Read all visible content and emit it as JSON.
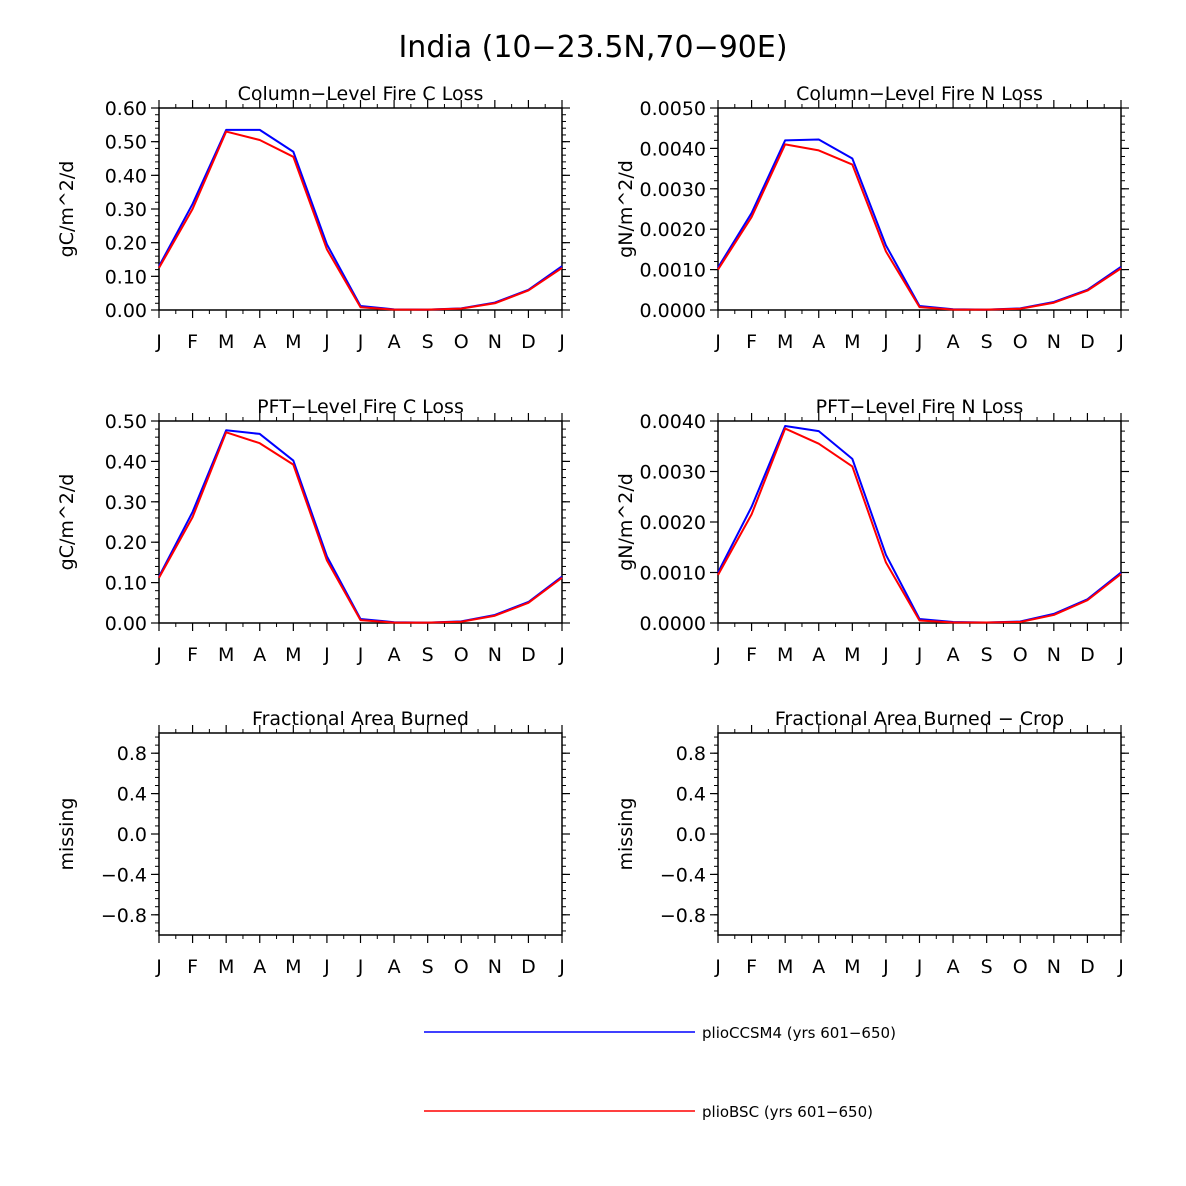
{
  "figure": {
    "title": "India (10−23.5N,70−90E)",
    "colors": {
      "series_0": "#0000ff",
      "series_1": "#ff0000",
      "axes": "#000000"
    }
  },
  "legend": {
    "placement": "bottom-center",
    "entries": [
      {
        "label": "plioCCSM4 (yrs 601−650)",
        "color": "#0000ff"
      },
      {
        "label": "plioBSC (yrs 601−650)",
        "color": "#ff0000"
      }
    ]
  },
  "chart_data": [
    {
      "type": "line",
      "title": "Column−Level Fire C Loss",
      "ylabel": "gC/m^2/d",
      "xlabel": "",
      "categories": [
        "J",
        "F",
        "M",
        "A",
        "M",
        "J",
        "J",
        "A",
        "S",
        "O",
        "N",
        "D",
        "J"
      ],
      "ylim": [
        0,
        0.6
      ],
      "yticks": [
        0,
        0.1,
        0.2,
        0.3,
        0.4,
        0.5,
        0.6
      ],
      "yticklabels": [
        "0.00",
        "0.10",
        "0.20",
        "0.30",
        "0.40",
        "0.50",
        "0.60"
      ],
      "series": [
        {
          "name": "plioCCSM4 (yrs 601−650)",
          "color": "#0000ff",
          "values": [
            0.13,
            0.315,
            0.535,
            0.535,
            0.47,
            0.195,
            0.012,
            0.002,
            0.001,
            0.005,
            0.022,
            0.06,
            0.13
          ]
        },
        {
          "name": "plioBSC (yrs 601−650)",
          "color": "#ff0000",
          "values": [
            0.125,
            0.3,
            0.53,
            0.505,
            0.455,
            0.18,
            0.008,
            0.001,
            0.001,
            0.004,
            0.02,
            0.058,
            0.125
          ]
        }
      ]
    },
    {
      "type": "line",
      "title": "Column−Level Fire N Loss",
      "ylabel": "gN/m^2/d",
      "xlabel": "",
      "categories": [
        "J",
        "F",
        "M",
        "A",
        "M",
        "J",
        "J",
        "A",
        "S",
        "O",
        "N",
        "D",
        "J"
      ],
      "ylim": [
        0,
        0.005
      ],
      "yticks": [
        0,
        0.001,
        0.002,
        0.003,
        0.004,
        0.005
      ],
      "yticklabels": [
        "0.0000",
        "0.0010",
        "0.0020",
        "0.0030",
        "0.0040",
        "0.0050"
      ],
      "series": [
        {
          "name": "plioCCSM4 (yrs 601−650)",
          "color": "#0000ff",
          "values": [
            0.00105,
            0.0024,
            0.0042,
            0.00422,
            0.00375,
            0.0016,
            0.0001,
            2e-05,
            1e-05,
            4e-05,
            0.0002,
            0.0005,
            0.00107
          ]
        },
        {
          "name": "plioBSC (yrs 601−650)",
          "color": "#ff0000",
          "values": [
            0.001,
            0.0023,
            0.0041,
            0.00395,
            0.0036,
            0.00145,
            7e-05,
            1e-05,
            1e-05,
            3e-05,
            0.00018,
            0.00048,
            0.00103
          ]
        }
      ]
    },
    {
      "type": "line",
      "title": "PFT−Level Fire C Loss",
      "ylabel": "gC/m^2/d",
      "xlabel": "",
      "categories": [
        "J",
        "F",
        "M",
        "A",
        "M",
        "J",
        "J",
        "A",
        "S",
        "O",
        "N",
        "D",
        "J"
      ],
      "ylim": [
        0,
        0.5
      ],
      "yticks": [
        0,
        0.1,
        0.2,
        0.3,
        0.4,
        0.5
      ],
      "yticklabels": [
        "0.00",
        "0.10",
        "0.20",
        "0.30",
        "0.40",
        "0.50"
      ],
      "series": [
        {
          "name": "plioCCSM4 (yrs 601−650)",
          "color": "#0000ff",
          "values": [
            0.115,
            0.275,
            0.477,
            0.468,
            0.402,
            0.165,
            0.01,
            0.002,
            0.001,
            0.004,
            0.02,
            0.052,
            0.115
          ]
        },
        {
          "name": "plioBSC (yrs 601−650)",
          "color": "#ff0000",
          "values": [
            0.112,
            0.262,
            0.472,
            0.445,
            0.392,
            0.155,
            0.007,
            0.001,
            0.001,
            0.003,
            0.018,
            0.05,
            0.112
          ]
        }
      ]
    },
    {
      "type": "line",
      "title": "PFT−Level Fire N Loss",
      "ylabel": "gN/m^2/d",
      "xlabel": "",
      "categories": [
        "J",
        "F",
        "M",
        "A",
        "M",
        "J",
        "J",
        "A",
        "S",
        "O",
        "N",
        "D",
        "J"
      ],
      "ylim": [
        0,
        0.004
      ],
      "yticks": [
        0,
        0.001,
        0.002,
        0.003,
        0.004
      ],
      "yticklabels": [
        "0.0000",
        "0.0010",
        "0.0020",
        "0.0030",
        "0.0040"
      ],
      "series": [
        {
          "name": "plioCCSM4 (yrs 601−650)",
          "color": "#0000ff",
          "values": [
            0.001,
            0.0023,
            0.0039,
            0.0038,
            0.00325,
            0.00135,
            8e-05,
            2e-05,
            1e-05,
            3e-05,
            0.00018,
            0.00047,
            0.001
          ]
        },
        {
          "name": "plioBSC (yrs 601−650)",
          "color": "#ff0000",
          "values": [
            0.00095,
            0.00215,
            0.00385,
            0.00355,
            0.0031,
            0.0012,
            5e-05,
            1e-05,
            1e-05,
            2e-05,
            0.00016,
            0.00045,
            0.00097
          ]
        }
      ]
    },
    {
      "type": "line",
      "title": "Fractional Area Burned",
      "ylabel": "missing",
      "xlabel": "",
      "categories": [
        "J",
        "F",
        "M",
        "A",
        "M",
        "J",
        "J",
        "A",
        "S",
        "O",
        "N",
        "D",
        "J"
      ],
      "ylim": [
        -1,
        1
      ],
      "yticks": [
        -0.8,
        -0.4,
        0,
        0.4,
        0.8
      ],
      "yticklabels": [
        "−0.8",
        "−0.4",
        "0.0",
        "0.4",
        "0.8"
      ],
      "series": []
    },
    {
      "type": "line",
      "title": "Fractional Area Burned − Crop",
      "ylabel": "missing",
      "xlabel": "",
      "categories": [
        "J",
        "F",
        "M",
        "A",
        "M",
        "J",
        "J",
        "A",
        "S",
        "O",
        "N",
        "D",
        "J"
      ],
      "ylim": [
        -1,
        1
      ],
      "yticks": [
        -0.8,
        -0.4,
        0,
        0.4,
        0.8
      ],
      "yticklabels": [
        "−0.8",
        "−0.4",
        "0.0",
        "0.4",
        "0.8"
      ],
      "series": []
    }
  ]
}
